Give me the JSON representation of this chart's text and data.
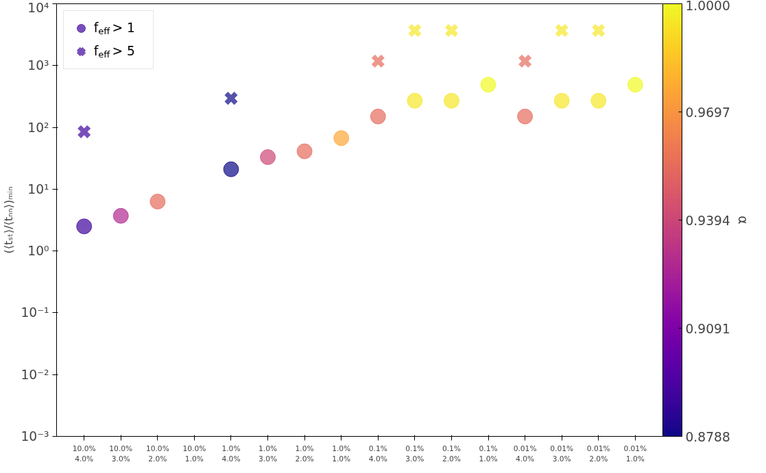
{
  "chart_data": {
    "type": "scatter",
    "ylabel": "(⟨tₛₜ⟩/⟨tₙₙ⟩)ₘᵢₙ",
    "clabel": "α",
    "categories": [
      "10.0%\n4.0%",
      "10.0%\n3.0%",
      "10.0%\n2.0%",
      "10.0%\n1.0%",
      "1.0%\n4.0%",
      "1.0%\n3.0%",
      "1.0%\n2.0%",
      "1.0%\n1.0%",
      "0.1%\n4.0%",
      "0.1%\n3.0%",
      "0.1%\n2.0%",
      "0.1%\n1.0%",
      "0.01%\n4.0%",
      "0.01%\n3.0%",
      "0.01%\n2.0%",
      "0.01%\n1.0%"
    ],
    "series": [
      {
        "name": "f$_{eff}$ > 1",
        "marker": "circle",
        "colors": [
          "#3e049c",
          "#b12a90",
          "#e56b5d",
          null,
          "#0d0887",
          "#cc4778",
          "#e56b5d",
          "#fca636",
          "#e56b5d",
          "#f5e726",
          "#f5e726",
          "#f0f921",
          "#e56b5d",
          "#f5e726",
          "#f5e726",
          "#f0f921"
        ],
        "values": [
          2.5,
          3.7,
          6.3,
          null,
          21,
          33,
          41,
          67,
          150,
          270,
          270,
          490,
          150,
          270,
          270,
          490
        ],
        "cvalues": [
          0.8908,
          0.928,
          0.955,
          null,
          0.8788,
          0.94,
          0.955,
          0.9763,
          0.955,
          0.995,
          0.995,
          1.0,
          0.955,
          0.995,
          0.995,
          1.0
        ]
      },
      {
        "name": "f$_{eff}$ > 5",
        "marker": "cross",
        "colors": [
          "#3e049c",
          null,
          null,
          null,
          "#0d0887",
          null,
          null,
          null,
          "#e56b5d",
          "#f5e726",
          "#f5e726",
          null,
          "#e56b5d",
          "#f5e726",
          "#f5e726",
          null
        ],
        "values": [
          85,
          null,
          null,
          null,
          295,
          null,
          null,
          null,
          1180,
          3700,
          3700,
          null,
          1180,
          3700,
          3700,
          null
        ],
        "cvalues": [
          0.8908,
          null,
          null,
          null,
          0.8788,
          null,
          null,
          null,
          0.955,
          0.995,
          0.995,
          null,
          0.955,
          0.995,
          0.995,
          null
        ]
      }
    ],
    "log": "y",
    "ylim": [
      0.001,
      10000
    ],
    "yticks": [
      {
        "value": 0.001,
        "label": "10⁻³"
      },
      {
        "value": 0.01,
        "label": "10⁻²"
      },
      {
        "value": 0.1,
        "label": "10⁻¹"
      },
      {
        "value": 1,
        "label": "10⁰"
      },
      {
        "value": 10,
        "label": "10¹"
      },
      {
        "value": 100,
        "label": "10²"
      },
      {
        "value": 1000,
        "label": "10³"
      },
      {
        "value": 10000,
        "label": "10⁴"
      }
    ],
    "clim": [
      0.8788,
      1.0
    ],
    "cticks": [
      {
        "value": 0.8788,
        "label": "0.8788"
      },
      {
        "value": 0.9091,
        "label": "0.9091"
      },
      {
        "value": 0.9394,
        "label": "0.9394"
      },
      {
        "value": 0.9697,
        "label": "0.9697"
      },
      {
        "value": 1.0,
        "label": "1.0000"
      }
    ],
    "grid": false,
    "legend": "top left"
  }
}
